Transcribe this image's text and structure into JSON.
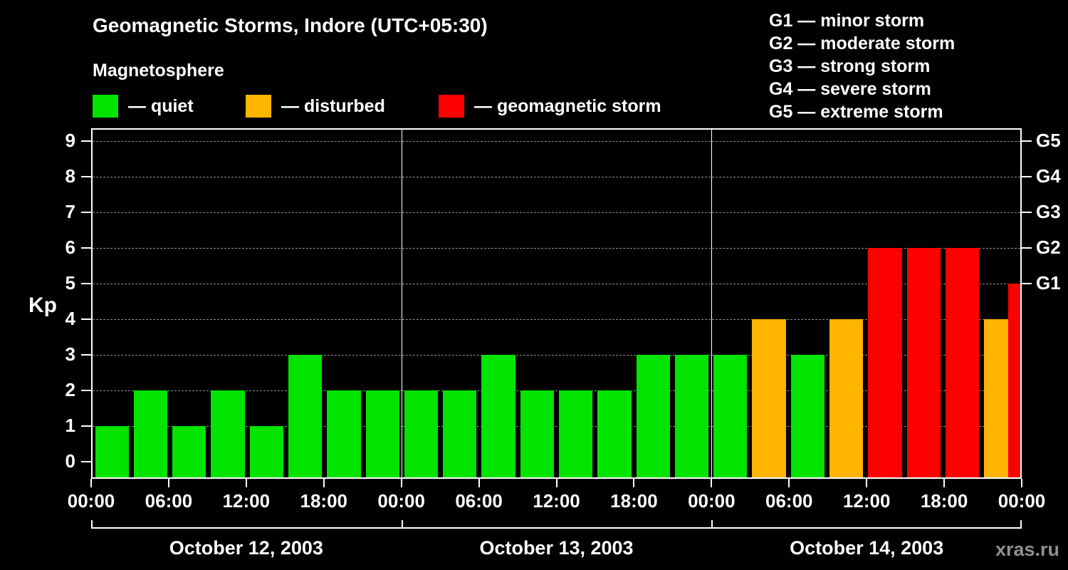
{
  "header": {
    "title": "Geomagnetic Storms, Indore (UTC+05:30)",
    "subtitle": "Magnetosphere"
  },
  "legend": {
    "items": [
      {
        "label": "— quiet",
        "key": "quiet"
      },
      {
        "label": "— disturbed",
        "key": "disturbed"
      },
      {
        "label": "— geomagnetic storm",
        "key": "storm"
      }
    ]
  },
  "storm_scale": {
    "items": [
      "G1 — minor storm",
      "G2 — moderate storm",
      "G3 — strong storm",
      "G4 — severe storm",
      "G5 — extreme storm"
    ]
  },
  "chart_data": {
    "type": "bar",
    "title": "Geomagnetic Storms, Indore (UTC+05:30)",
    "ylabel": "Kp",
    "ylim": [
      0,
      9
    ],
    "yticks": [
      0,
      1,
      2,
      3,
      4,
      5,
      6,
      7,
      8,
      9
    ],
    "right_axis_ticks": [
      {
        "label": "G1",
        "value": 5
      },
      {
        "label": "G2",
        "value": 6
      },
      {
        "label": "G3",
        "value": 7
      },
      {
        "label": "G4",
        "value": 8
      },
      {
        "label": "G5",
        "value": 9
      }
    ],
    "x_tick_labels": [
      "00:00",
      "06:00",
      "12:00",
      "18:00",
      "00:00",
      "06:00",
      "12:00",
      "18:00",
      "00:00",
      "06:00",
      "12:00",
      "18:00",
      "00:00"
    ],
    "interval_hours": 3,
    "days": [
      {
        "date": "October 12, 2003",
        "values": [
          1,
          2,
          1,
          2,
          1,
          3,
          2,
          2
        ]
      },
      {
        "date": "October 13, 2003",
        "values": [
          2,
          2,
          3,
          2,
          2,
          2,
          3,
          3
        ]
      },
      {
        "date": "October 14, 2003",
        "values": [
          3,
          4,
          3,
          4,
          6,
          6,
          6,
          4
        ]
      }
    ],
    "partial_next_interval": {
      "value": 5
    },
    "colors": {
      "quiet": "#00e400",
      "disturbed": "#ffb400",
      "storm": "#ff0000"
    },
    "color_rules": {
      "disturbed_at_kp": 4,
      "storm_at_kp": 5
    },
    "grid": "dashed-horizontal",
    "legend_position": "top"
  },
  "watermark": "xras.ru"
}
